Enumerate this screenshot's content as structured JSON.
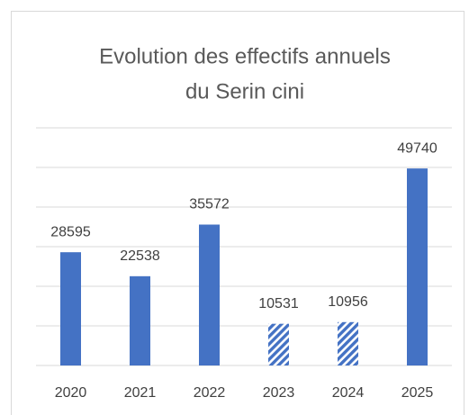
{
  "chart_data": {
    "type": "bar",
    "title": [
      "Evolution des effectifs annuels",
      "du Serin cini"
    ],
    "categories": [
      "2020",
      "2021",
      "2022",
      "2023",
      "2024",
      "2025"
    ],
    "values": [
      28595,
      22538,
      35572,
      10531,
      10956,
      49740
    ],
    "hatched": [
      false,
      false,
      false,
      true,
      true,
      false
    ],
    "color": "#4472c4",
    "ylim": [
      0,
      60000
    ],
    "yticks": [
      0,
      10000,
      20000,
      30000,
      40000,
      50000,
      60000
    ],
    "grid": true
  }
}
